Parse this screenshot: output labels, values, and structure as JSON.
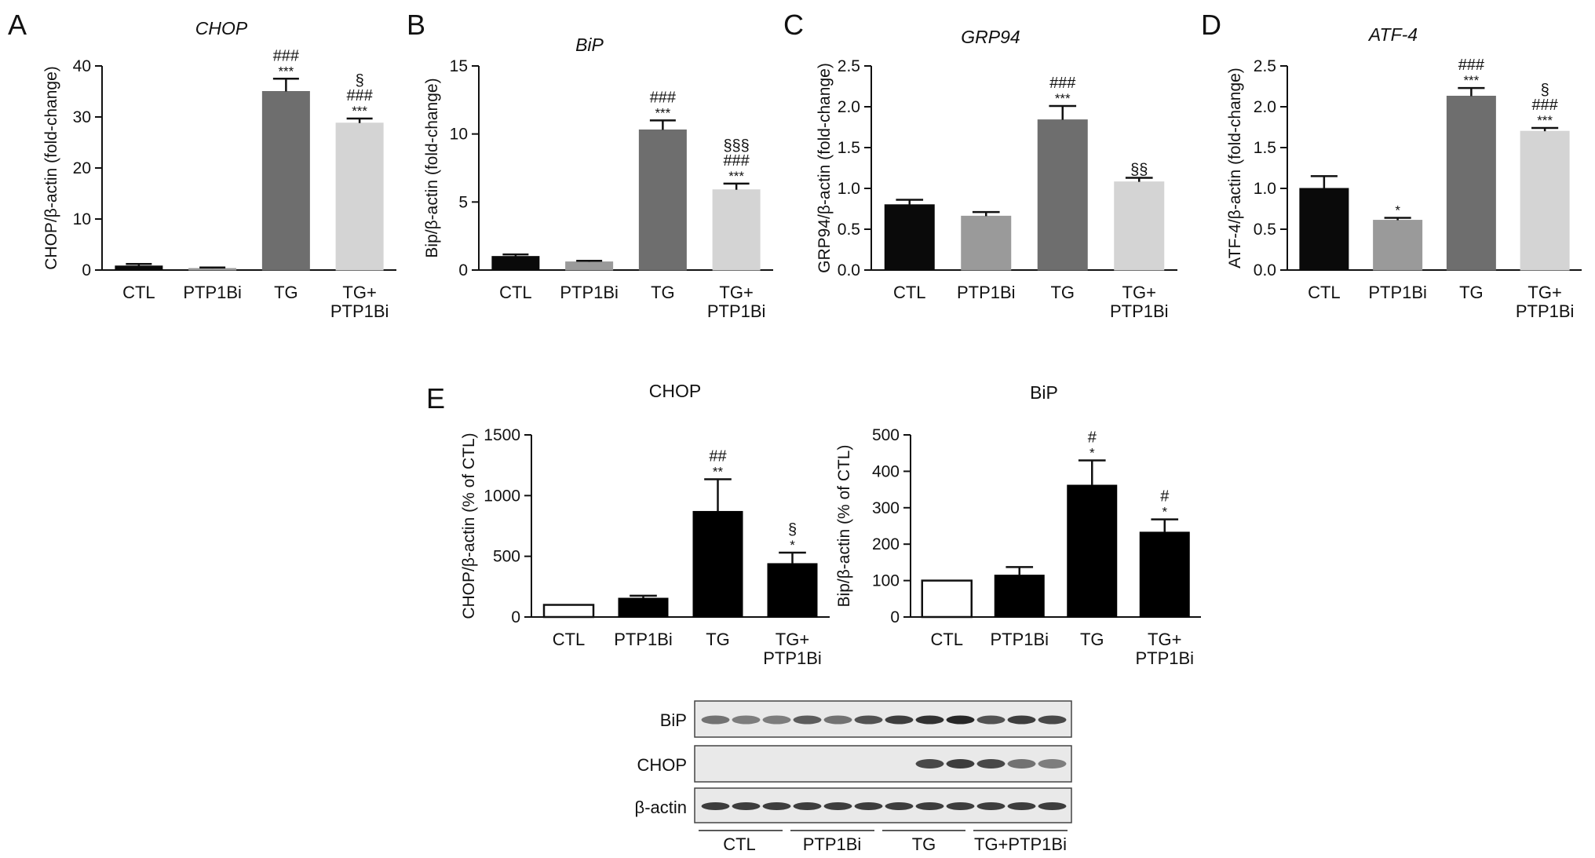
{
  "figure": {
    "background": "#ffffff",
    "panel_letters": [
      "A",
      "B",
      "C",
      "D",
      "E"
    ]
  },
  "chart_data": [
    {
      "id": "A",
      "type": "bar",
      "title": "CHOP",
      "title_italic": true,
      "ylabel": "CHOP/β-actin (fold-change)",
      "categories": [
        "CTL",
        "PTP1Bi",
        "TG",
        "TG+\nPTP1Bi"
      ],
      "values": [
        0.8,
        0.3,
        35.0,
        28.8
      ],
      "errors": [
        0.4,
        0.2,
        2.5,
        0.9
      ],
      "colors": [
        "#0a0a0a",
        "#9a9a9a",
        "#6e6e6e",
        "#d4d4d4"
      ],
      "ylim": [
        0,
        40
      ],
      "yticks": [
        0,
        10,
        20,
        30,
        40
      ],
      "ytick_labels": [
        "0",
        "10",
        "20",
        "30",
        "40"
      ],
      "annotations": [
        [],
        [],
        [
          "###",
          "***"
        ],
        [
          "§",
          "###",
          "***"
        ]
      ]
    },
    {
      "id": "B",
      "type": "bar",
      "title": "BiP",
      "title_italic": true,
      "ylabel": "Bip/β-actin (fold-change)",
      "categories": [
        "CTL",
        "PTP1Bi",
        "TG",
        "TG+\nPTP1Bi"
      ],
      "values": [
        1.0,
        0.6,
        10.3,
        5.9
      ],
      "errors": [
        0.15,
        0.08,
        0.7,
        0.45
      ],
      "colors": [
        "#0a0a0a",
        "#9a9a9a",
        "#6e6e6e",
        "#d4d4d4"
      ],
      "ylim": [
        0,
        15
      ],
      "yticks": [
        0,
        5,
        10,
        15
      ],
      "ytick_labels": [
        "0",
        "5",
        "10",
        "15"
      ],
      "annotations": [
        [],
        [],
        [
          "###",
          "***"
        ],
        [
          "§§§",
          "###",
          "***"
        ]
      ]
    },
    {
      "id": "C",
      "type": "bar",
      "title": "GRP94",
      "title_italic": true,
      "ylabel": "GRP94/β-actin (fold-change)",
      "categories": [
        "CTL",
        "PTP1Bi",
        "TG",
        "TG+\nPTP1Bi"
      ],
      "values": [
        0.8,
        0.66,
        1.84,
        1.08
      ],
      "errors": [
        0.06,
        0.05,
        0.17,
        0.05
      ],
      "colors": [
        "#0a0a0a",
        "#9a9a9a",
        "#6e6e6e",
        "#d4d4d4"
      ],
      "ylim": [
        0,
        2.5
      ],
      "yticks": [
        0,
        0.5,
        1,
        1.5,
        2,
        2.5
      ],
      "ytick_labels": [
        "0.0",
        "0.5",
        "1.0",
        "1.5",
        "2.0",
        "2.5"
      ],
      "annotations": [
        [],
        [],
        [
          "###",
          "***"
        ],
        [
          "§§"
        ]
      ]
    },
    {
      "id": "D",
      "type": "bar",
      "title": "ATF-4",
      "title_italic": true,
      "ylabel": "ATF-4/β-actin (fold-change)",
      "categories": [
        "CTL",
        "PTP1Bi",
        "TG",
        "TG+\nPTP1Bi"
      ],
      "values": [
        1.0,
        0.61,
        2.13,
        1.7
      ],
      "errors": [
        0.15,
        0.03,
        0.1,
        0.04
      ],
      "colors": [
        "#0a0a0a",
        "#9a9a9a",
        "#6e6e6e",
        "#d4d4d4"
      ],
      "ylim": [
        0,
        2.5
      ],
      "yticks": [
        0,
        0.5,
        1,
        1.5,
        2,
        2.5
      ],
      "ytick_labels": [
        "0.0",
        "0.5",
        "1.0",
        "1.5",
        "2.0",
        "2.5"
      ],
      "annotations": [
        [],
        [
          "*"
        ],
        [
          "###",
          "***"
        ],
        [
          "§",
          "###",
          "***"
        ]
      ]
    },
    {
      "id": "E1",
      "type": "bar",
      "title": "CHOP",
      "title_italic": false,
      "ylabel": "CHOP/β-actin (% of CTL)",
      "categories": [
        "CTL",
        "PTP1Bi",
        "TG",
        "TG+\nPTP1Bi"
      ],
      "values": [
        100,
        155,
        870,
        440
      ],
      "errors": [
        0,
        20,
        265,
        90
      ],
      "colors": [
        "#ffffff",
        "#000000",
        "#000000",
        "#000000"
      ],
      "ylim": [
        0,
        1500
      ],
      "yticks": [
        0,
        500,
        1000,
        1500
      ],
      "ytick_labels": [
        "0",
        "500",
        "1000",
        "1500"
      ],
      "annotations": [
        [],
        [],
        [
          "##",
          "**"
        ],
        [
          "§",
          "*"
        ]
      ]
    },
    {
      "id": "E2",
      "type": "bar",
      "title": "BiP",
      "title_italic": false,
      "ylabel": "Bip/β-actin (% of CTL)",
      "categories": [
        "CTL",
        "PTP1Bi",
        "TG",
        "TG+\nPTP1Bi"
      ],
      "values": [
        100,
        115,
        362,
        233
      ],
      "errors": [
        0,
        22,
        68,
        35
      ],
      "colors": [
        "#ffffff",
        "#000000",
        "#000000",
        "#000000"
      ],
      "ylim": [
        0,
        500
      ],
      "yticks": [
        0,
        100,
        200,
        300,
        400,
        500
      ],
      "ytick_labels": [
        "0",
        "100",
        "200",
        "300",
        "400",
        "500"
      ],
      "annotations": [
        [],
        [],
        [
          "#",
          "*"
        ],
        [
          "#",
          "*"
        ]
      ]
    }
  ],
  "blot": {
    "rows": [
      "BiP",
      "CHOP",
      "β-actin"
    ],
    "groups": [
      "CTL",
      "PTP1Bi",
      "TG",
      "TG+PTP1Bi"
    ]
  }
}
